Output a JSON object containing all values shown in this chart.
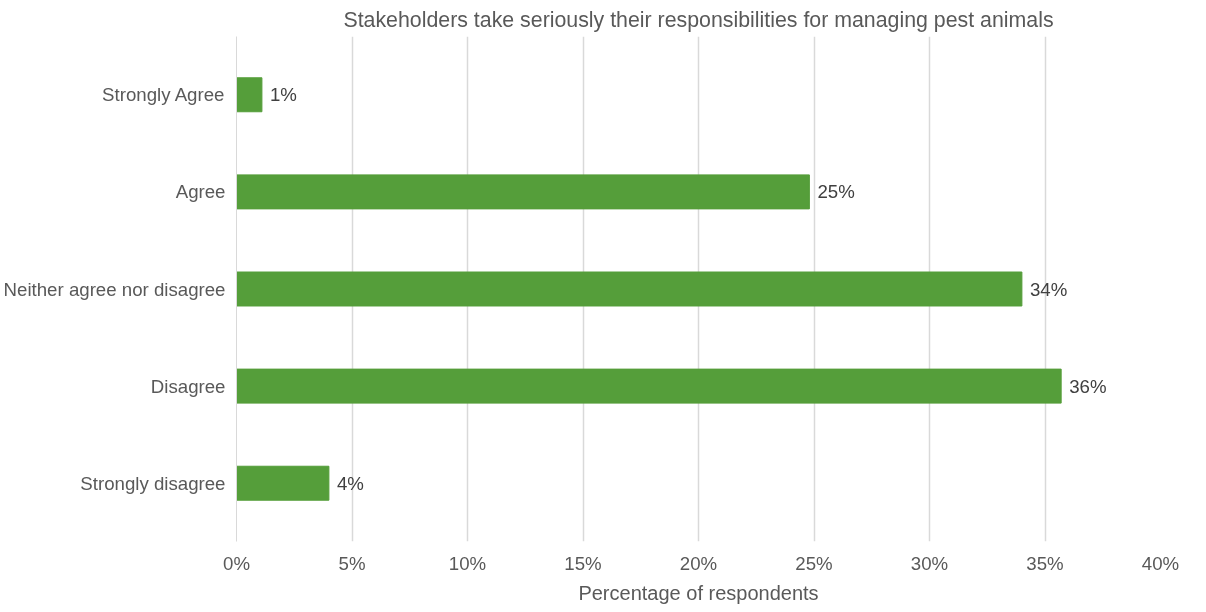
{
  "chart_data": {
    "type": "bar",
    "orientation": "horizontal",
    "title": "Stakeholders take seriously their responsibilities for managing pest animals",
    "xlabel": "Percentage of respondents",
    "categories": [
      "Strongly Agree",
      "Agree",
      "Neither agree nor disagree",
      "Disagree",
      "Strongly disagree"
    ],
    "values": [
      1.1,
      24.8,
      34.0,
      35.7,
      4.0
    ],
    "value_labels": [
      "1%",
      "25%",
      "34%",
      "36%",
      "4%"
    ],
    "color": "#559e3a",
    "xlim": [
      0,
      40
    ],
    "xticks": [
      {
        "value": 0,
        "label": "0%"
      },
      {
        "value": 5,
        "label": "5%"
      },
      {
        "value": 10,
        "label": "10%"
      },
      {
        "value": 15,
        "label": "15%"
      },
      {
        "value": 20,
        "label": "20%"
      },
      {
        "value": 25,
        "label": "25%"
      },
      {
        "value": 30,
        "label": "30%"
      },
      {
        "value": 35,
        "label": "35%"
      },
      {
        "value": 40,
        "label": "40%"
      }
    ],
    "grid": "x"
  }
}
